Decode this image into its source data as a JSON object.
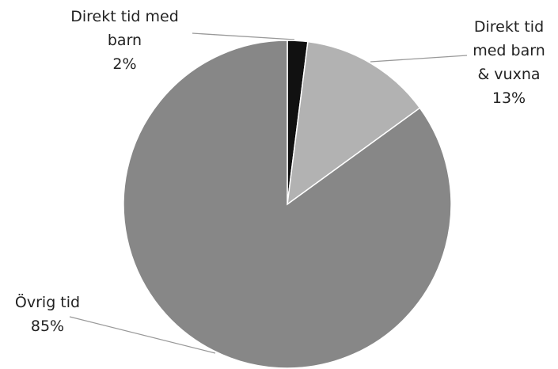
{
  "chart_data": {
    "type": "pie",
    "categories": [
      "Direkt tid med barn",
      "Direkt tid med barn & vuxna",
      "Övrig tid"
    ],
    "values": [
      2,
      13,
      85
    ],
    "value_labels": [
      "2%",
      "13%",
      "85%"
    ],
    "colors": [
      "#111111",
      "#b2b2b2",
      "#878787"
    ]
  }
}
